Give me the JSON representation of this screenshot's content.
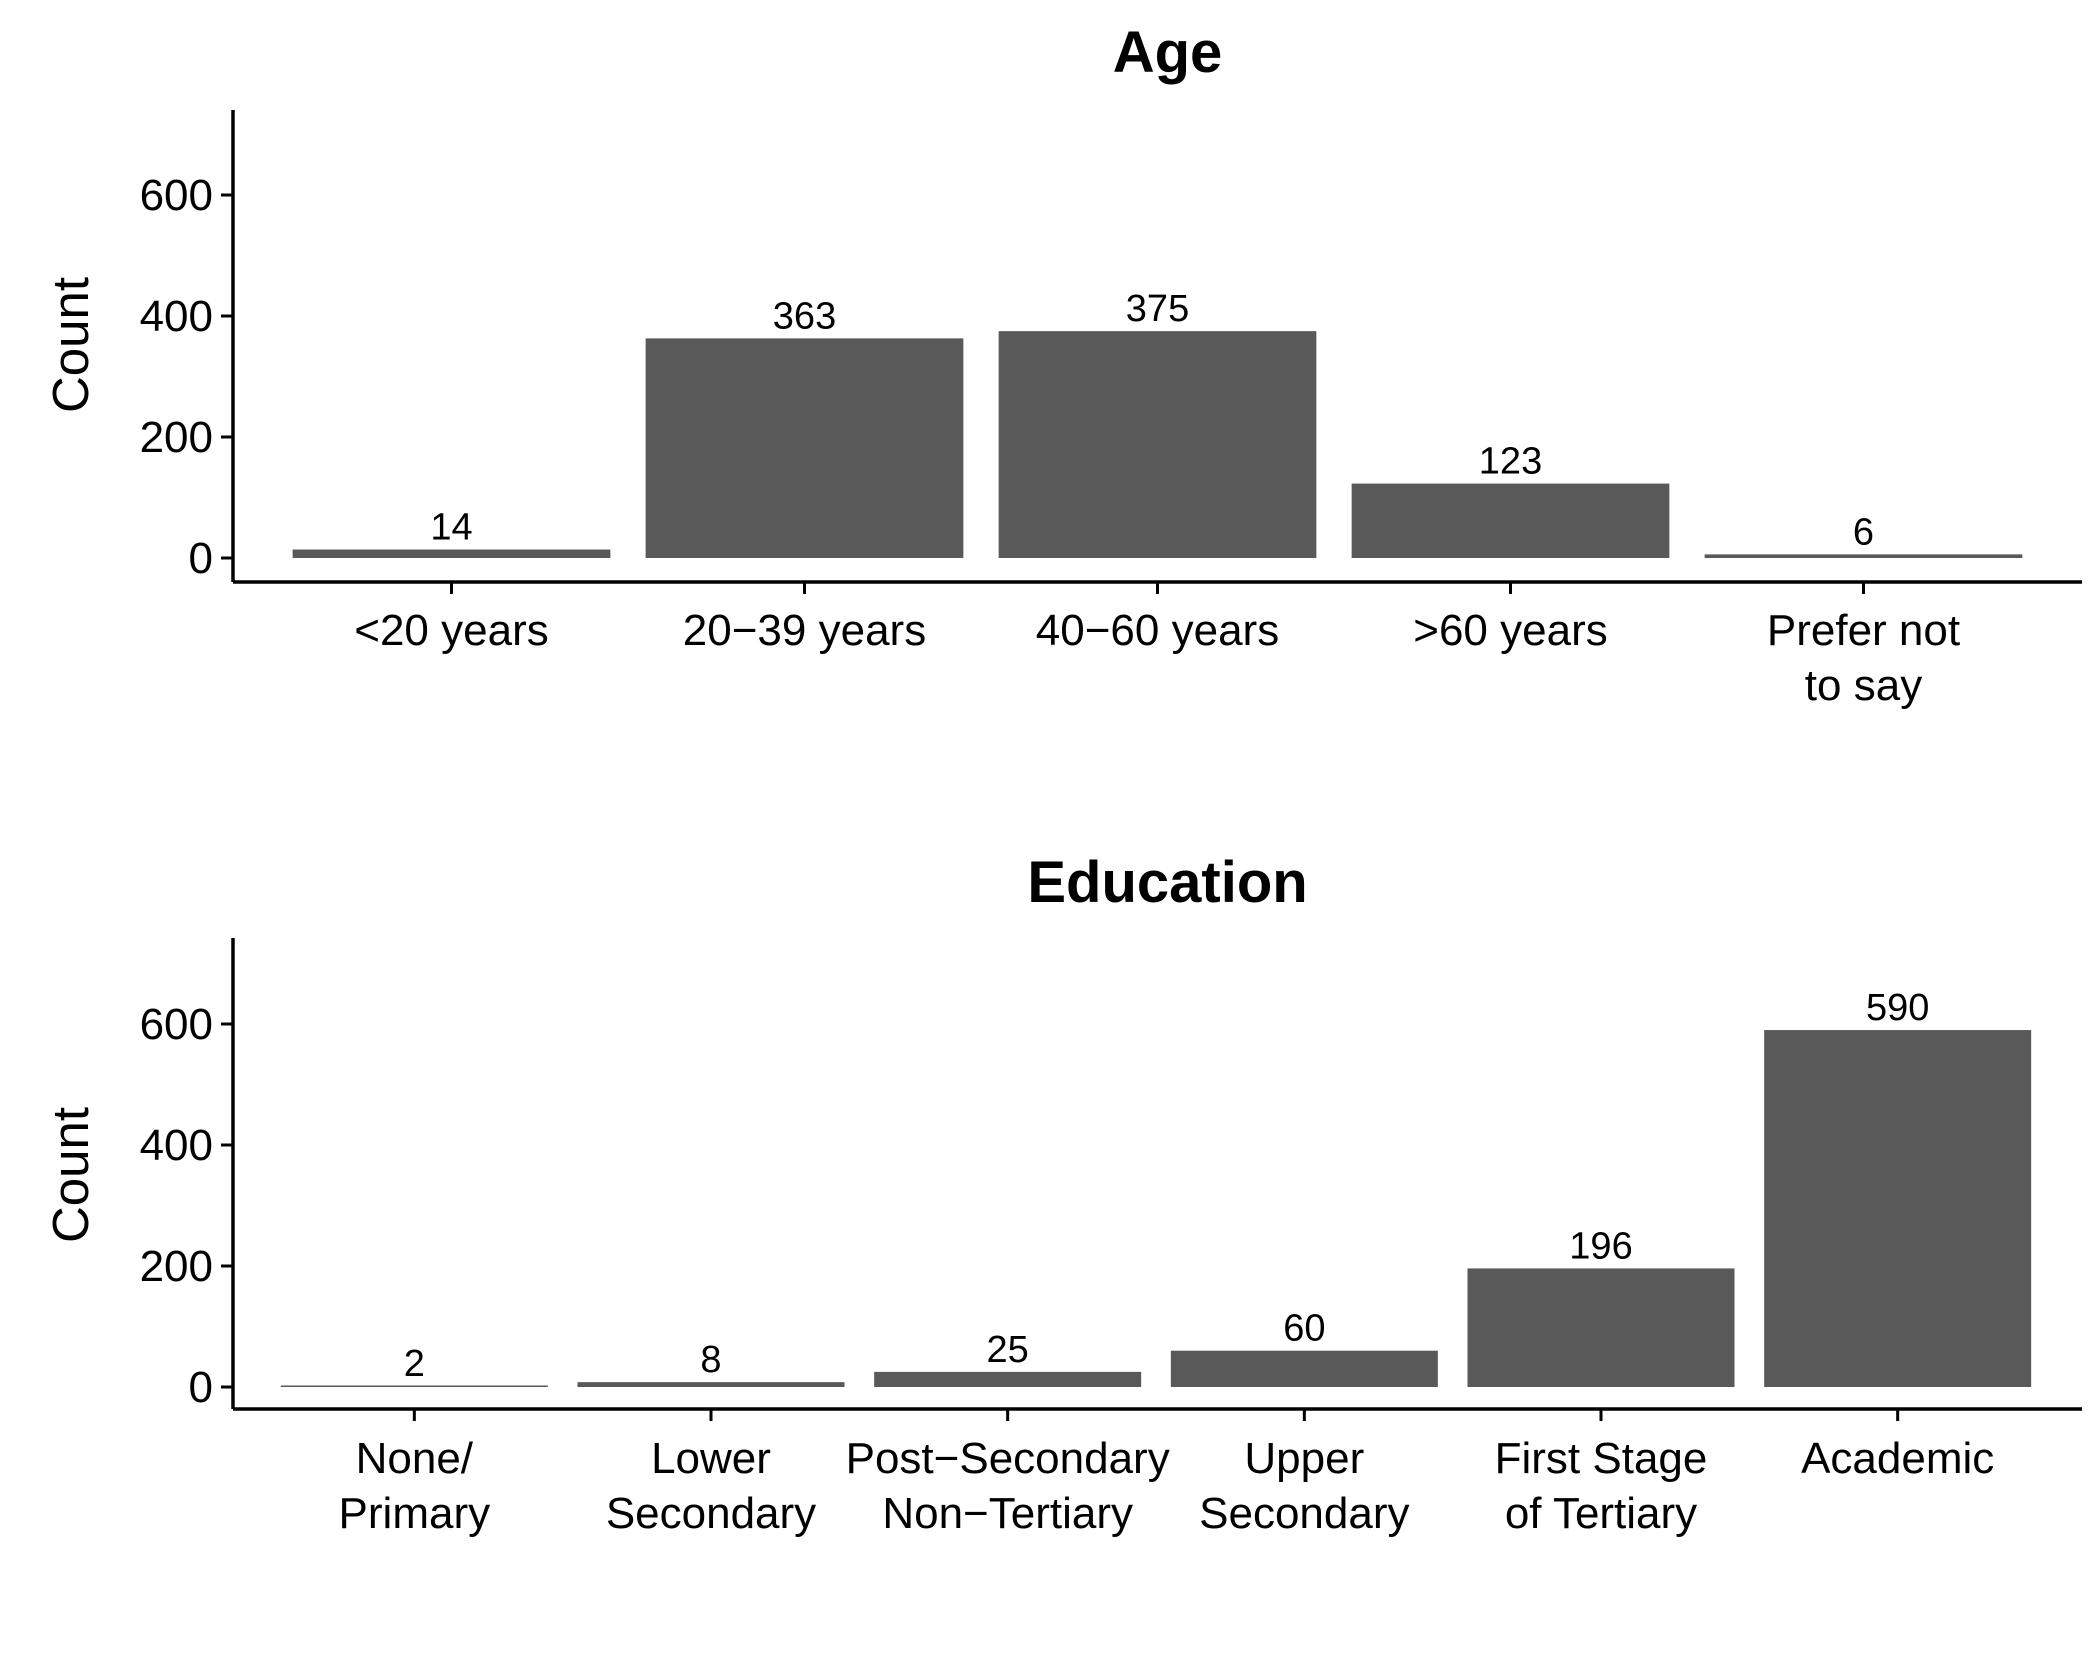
{
  "chart_data": [
    {
      "type": "bar",
      "title": "Age",
      "xlabel": "",
      "ylabel": "Count",
      "ylim": [
        0,
        720
      ],
      "yticks": [
        "0",
        "200",
        "400",
        "600"
      ],
      "categories": [
        [
          "<20 years"
        ],
        [
          "20−39 years"
        ],
        [
          "40−60 years"
        ],
        [
          ">60 years"
        ],
        [
          "Prefer not",
          "to say"
        ]
      ],
      "values": [
        14,
        363,
        375,
        123,
        6
      ],
      "data_labels": [
        "14",
        "363",
        "375",
        "123",
        "6"
      ],
      "bar_color": "#595959",
      "grid": false
    },
    {
      "type": "bar",
      "title": "Education",
      "xlabel": "",
      "ylabel": "Count",
      "ylim": [
        0,
        720
      ],
      "yticks": [
        "0",
        "200",
        "400",
        "600"
      ],
      "categories": [
        [
          "None/",
          "Primary"
        ],
        [
          "Lower",
          "Secondary"
        ],
        [
          "Post−Secondary",
          "Non−Tertiary"
        ],
        [
          "Upper",
          "Secondary"
        ],
        [
          "First Stage",
          "of Tertiary"
        ],
        [
          "Academic"
        ]
      ],
      "values": [
        2,
        8,
        25,
        60,
        196,
        590
      ],
      "data_labels": [
        "2",
        "8",
        "25",
        "60",
        "196",
        "590"
      ],
      "bar_color": "#595959",
      "grid": false
    }
  ]
}
